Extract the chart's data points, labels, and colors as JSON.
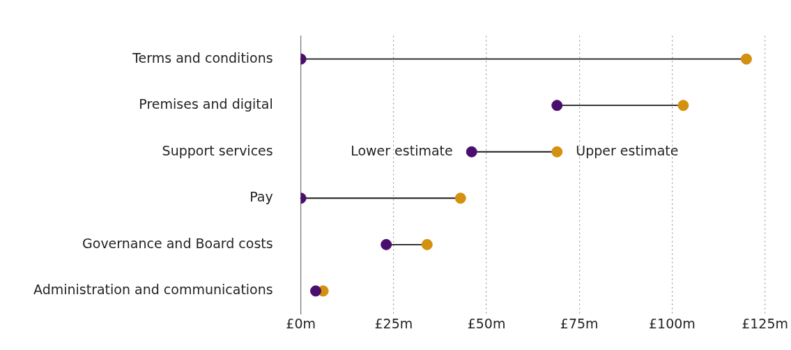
{
  "chart_data": {
    "type": "scatter",
    "orientation": "horizontal",
    "categories": [
      "Terms and conditions",
      "Premises and digital",
      "Support services",
      "Pay",
      "Governance and Board costs",
      "Administration and communications"
    ],
    "series": [
      {
        "color": "#4a0f6e",
        "values": [
          0,
          69,
          46,
          0,
          23,
          4
        ]
      },
      {
        "color": "#d4900f",
        "values": [
          120,
          103,
          69,
          43,
          34,
          6
        ]
      }
    ],
    "xlim": [
      0,
      125
    ],
    "xticks": [
      {
        "value": 0,
        "label": "£0m"
      },
      {
        "value": 25,
        "label": "£25m"
      },
      {
        "value": 50,
        "label": "£50m"
      },
      {
        "value": 75,
        "label": "£75m"
      },
      {
        "value": 100,
        "label": "£100m"
      },
      {
        "value": 125,
        "label": "£125m"
      }
    ],
    "grid": "x",
    "legend": false,
    "marker": "circle",
    "annotations": [
      {
        "text": "Lower estimate",
        "x": 46,
        "y": "Support services"
      },
      {
        "text": "Upper estimate",
        "x": 69,
        "y": "Support services"
      }
    ]
  }
}
